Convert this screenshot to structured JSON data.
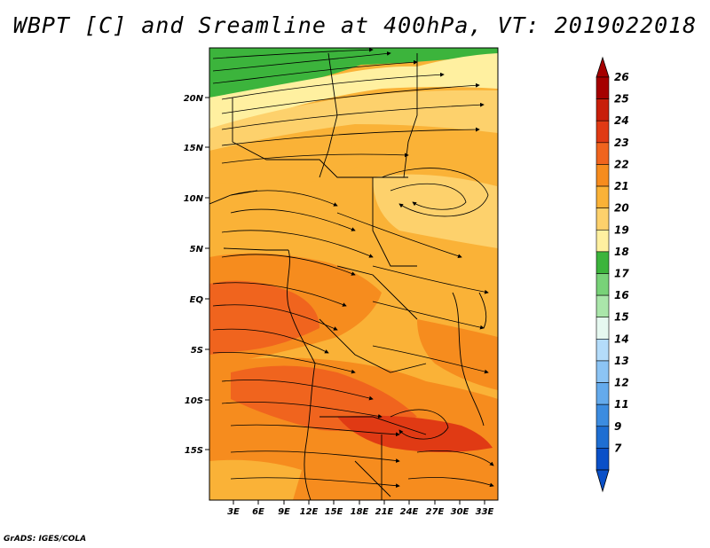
{
  "title": "WBPT [C] and Sreamline at 400hPa, VT: 2019022018",
  "credit": "GrADS: IGES/COLA",
  "map": {
    "lon_labels": [
      "3E",
      "6E",
      "9E",
      "12E",
      "15E",
      "18E",
      "21E",
      "24E",
      "27E",
      "30E",
      "33E"
    ],
    "lat_labels": [
      "20N",
      "15N",
      "10N",
      "5N",
      "EQ",
      "5S",
      "10S",
      "15S"
    ]
  },
  "colorbar": {
    "labels": [
      "26",
      "25",
      "24",
      "23",
      "22",
      "21",
      "20",
      "19",
      "18",
      "17",
      "16",
      "15",
      "14",
      "13",
      "12",
      "11",
      "9",
      "7"
    ],
    "colors": [
      "#a50000",
      "#c81e0a",
      "#e03a14",
      "#f0641e",
      "#f68c1e",
      "#fab237",
      "#fdd16c",
      "#fff0a0",
      "#3cb43c",
      "#78d278",
      "#aae6aa",
      "#e6f8f0",
      "#b4dcfa",
      "#8cc4f4",
      "#64aaec",
      "#3c8ce0",
      "#1e6ed2",
      "#0a50c8"
    ]
  }
}
